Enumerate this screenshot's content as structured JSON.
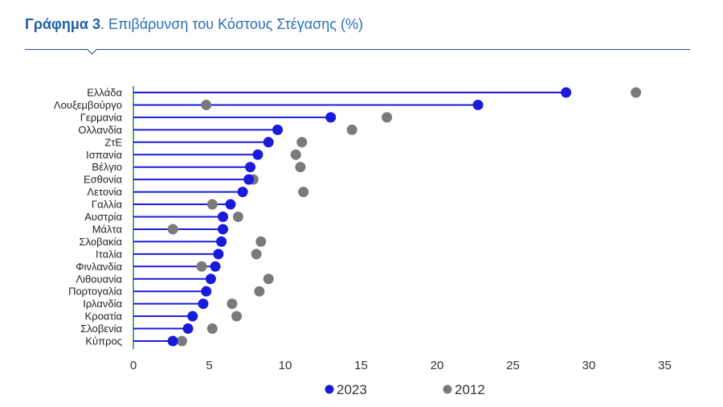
{
  "header": {
    "title_bold": "Γράφημα 3",
    "title_rest": ". Επιβάρυνση του Κόστους Στέγασης (%)"
  },
  "colors": {
    "s2023": "#1a1adb",
    "s2012": "#7a7a7a",
    "axis": "#2e8b3a",
    "header": "#2a6ebb"
  },
  "chart_data": {
    "type": "dot-lollipop",
    "title": "Γράφημα 3. Επιβάρυνση του Κόστους Στέγασης (%)",
    "categories": [
      "Ελλάδα",
      "Λουξεμβούργο",
      "Γερμανία",
      "Ολλανδία",
      "ΖτΕ",
      "Ισπανία",
      "Βέλγιο",
      "Εσθονία",
      "Λετονία",
      "Γαλλία",
      "Αυστρία",
      "Μάλτα",
      "Σλοβακία",
      "Ιταλία",
      "Φινλανδία",
      "Λιθουανία",
      "Πορτογαλία",
      "Ιρλανδία",
      "Κροατία",
      "Σλοβενία",
      "Κύπρος"
    ],
    "series": [
      {
        "name": "2023",
        "values": [
          28.5,
          22.7,
          13.0,
          9.5,
          8.9,
          8.2,
          7.7,
          7.6,
          7.2,
          6.4,
          5.9,
          5.9,
          5.8,
          5.6,
          5.4,
          5.1,
          4.8,
          4.6,
          3.9,
          3.6,
          2.6
        ]
      },
      {
        "name": "2012",
        "values": [
          33.1,
          4.8,
          16.7,
          14.4,
          11.1,
          10.7,
          11.0,
          7.9,
          11.2,
          5.2,
          6.9,
          2.6,
          8.4,
          8.1,
          4.5,
          8.9,
          8.3,
          6.5,
          6.8,
          5.2,
          3.2
        ]
      }
    ],
    "xticks": [
      0,
      5,
      10,
      15,
      20,
      25,
      30,
      35
    ],
    "xlim": [
      0,
      35
    ],
    "grid": false,
    "legend": "bottom"
  }
}
